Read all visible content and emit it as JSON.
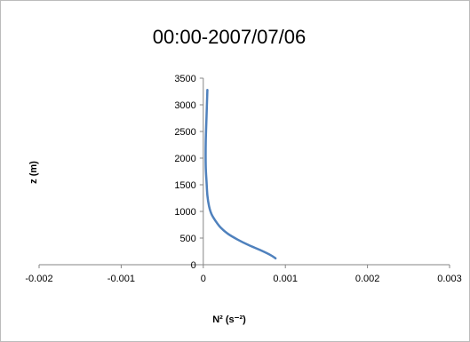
{
  "chart_data": {
    "type": "line",
    "title": "00:00-2007/07/06",
    "xlabel": "N² (s⁻²)",
    "ylabel": "z (m)",
    "xlim": [
      -0.002,
      0.003
    ],
    "ylim": [
      0,
      3500
    ],
    "x_ticks": [
      "-0.002",
      "-0.001",
      "0",
      "0.001",
      "0.002",
      "0.003"
    ],
    "y_ticks": [
      "0",
      "500",
      "1000",
      "1500",
      "2000",
      "2500",
      "3000",
      "3500"
    ],
    "grid": false,
    "legend": "none",
    "series": [
      {
        "color": "#4f81bd",
        "x": [
          0.00088,
          0.00082,
          0.0007,
          0.00055,
          0.00042,
          0.0003,
          0.00021,
          0.00015,
          0.0001,
          7e-05,
          5e-05,
          4e-05,
          3e-05,
          3e-05,
          4e-05,
          5e-05
        ],
        "y": [
          120,
          180,
          270,
          370,
          470,
          580,
          700,
          820,
          950,
          1100,
          1300,
          1550,
          1850,
          2300,
          2800,
          3280
        ]
      }
    ]
  }
}
